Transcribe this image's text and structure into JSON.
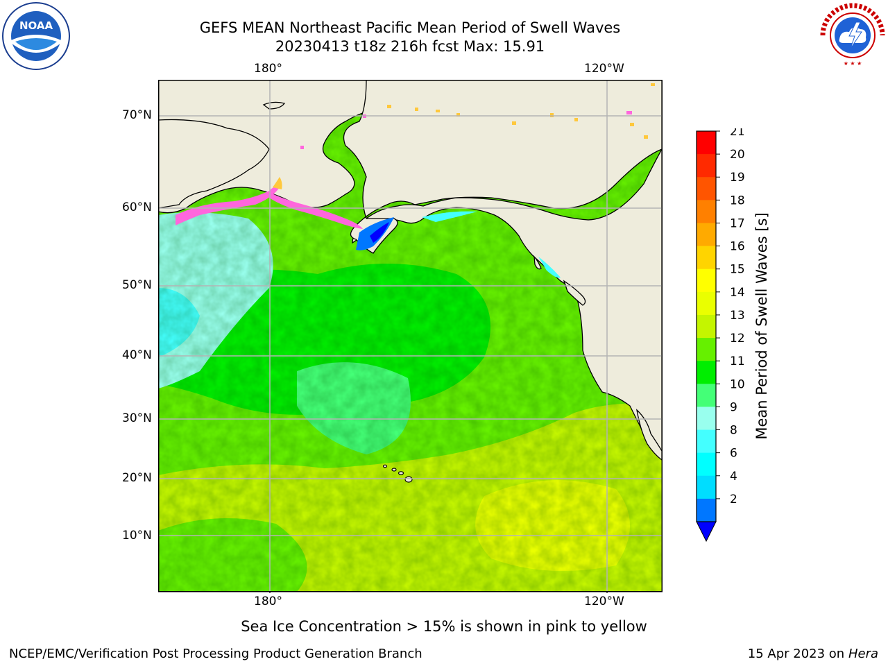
{
  "header": {
    "title_line1": "GEFS MEAN Northeast Pacific Mean Period of Swell Waves",
    "title_line2": "20230413 t18z 216h fcst   Max: 15.91"
  },
  "logos": {
    "noaa_text": "NOAA",
    "noaa_ring_text": "NATIONAL OCEANIC AND ATMOSPHERIC ADMINISTRATION · U.S. DEPARTMENT OF COMMERCE",
    "nws_ring_text": "NATIONAL WEATHER SERVICE"
  },
  "map": {
    "top_lon_labels": [
      "180°",
      "120°W"
    ],
    "bottom_lon_labels": [
      "180°",
      "120°W"
    ],
    "lat_labels": [
      "70°N",
      "60°N",
      "50°N",
      "40°N",
      "30°N",
      "20°N",
      "10°N"
    ],
    "colors": {
      "land": "#eeecdc",
      "coast": "#000000",
      "grid": "#b4b4b4",
      "ice_pink": "#ff66dd",
      "ice_yellow": "#ffc83c"
    }
  },
  "colorbar": {
    "label": "Mean Period of Swell Waves [s]",
    "ticks": [
      "21",
      "20",
      "19",
      "18",
      "17",
      "16",
      "15",
      "14",
      "13",
      "12",
      "11",
      "10",
      "9",
      "8",
      "6",
      "4",
      "2"
    ],
    "bins": [
      {
        "from": 20,
        "to": 21,
        "color": "#ff0000"
      },
      {
        "from": 19,
        "to": 20,
        "color": "#ff2a00"
      },
      {
        "from": 18,
        "to": 19,
        "color": "#ff5500"
      },
      {
        "from": 17,
        "to": 18,
        "color": "#ff8000"
      },
      {
        "from": 16,
        "to": 17,
        "color": "#ffaa00"
      },
      {
        "from": 15,
        "to": 16,
        "color": "#ffd400"
      },
      {
        "from": 14,
        "to": 15,
        "color": "#ffff00"
      },
      {
        "from": 13,
        "to": 14,
        "color": "#eaff00"
      },
      {
        "from": 12,
        "to": 13,
        "color": "#c4f500"
      },
      {
        "from": 11,
        "to": 12,
        "color": "#66f000"
      },
      {
        "from": 10,
        "to": 11,
        "color": "#00ee00"
      },
      {
        "from": 9,
        "to": 10,
        "color": "#44ff77"
      },
      {
        "from": 8,
        "to": 9,
        "color": "#99ffee"
      },
      {
        "from": 6,
        "to": 8,
        "color": "#44ffff"
      },
      {
        "from": 4,
        "to": 6,
        "color": "#00ffff"
      },
      {
        "from": 2,
        "to": 4,
        "color": "#00ddff"
      },
      {
        "from": 0,
        "to": 2,
        "color": "#0077ff"
      }
    ],
    "extend_min_color": "#0000ff"
  },
  "caption": "Sea Ice Concentration > 15% is shown in pink to yellow",
  "footer": {
    "left": "NCEP/EMC/Verification Post Processing Product Generation Branch",
    "right_date": "15 Apr 2023 on",
    "right_host": "Hera"
  }
}
